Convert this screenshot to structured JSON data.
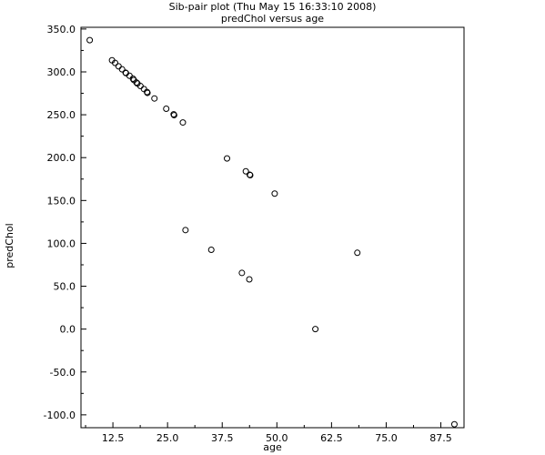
{
  "chart_data": {
    "type": "scatter",
    "title": "Sib-pair plot (Thu May 15 16:33:10 2008)",
    "subtitle": "predChol versus age",
    "xlabel": "age",
    "ylabel": "predChol",
    "xlim": [
      5.2,
      92.8
    ],
    "ylim": [
      -115.0,
      352.0
    ],
    "x_ticks": [
      "12.5",
      "25.0",
      "37.5",
      "50.0",
      "62.5",
      "75.0",
      "87.5"
    ],
    "y_ticks": [
      "350.0",
      "300.0",
      "250.0",
      "200.0",
      "150.0",
      "100.0",
      "50.0",
      "0.0",
      "-50.0",
      "-100.0"
    ],
    "grid": false,
    "marker": "open-circle",
    "points": [
      {
        "x": 7.2,
        "y": 337.0
      },
      {
        "x": 12.3,
        "y": 313.5
      },
      {
        "x": 13.0,
        "y": 310.5
      },
      {
        "x": 13.8,
        "y": 306.5
      },
      {
        "x": 14.6,
        "y": 303.0
      },
      {
        "x": 15.4,
        "y": 299.0
      },
      {
        "x": 15.5,
        "y": 298.5
      },
      {
        "x": 16.3,
        "y": 295.5
      },
      {
        "x": 17.1,
        "y": 292.0
      },
      {
        "x": 17.3,
        "y": 290.5
      },
      {
        "x": 17.9,
        "y": 287.5
      },
      {
        "x": 18.1,
        "y": 286.5
      },
      {
        "x": 18.8,
        "y": 283.5
      },
      {
        "x": 19.6,
        "y": 280.0
      },
      {
        "x": 20.3,
        "y": 276.5
      },
      {
        "x": 20.4,
        "y": 275.5
      },
      {
        "x": 22.0,
        "y": 269.0
      },
      {
        "x": 24.7,
        "y": 257.0
      },
      {
        "x": 26.4,
        "y": 250.5
      },
      {
        "x": 26.5,
        "y": 249.5
      },
      {
        "x": 28.5,
        "y": 241.0
      },
      {
        "x": 29.1,
        "y": 115.5
      },
      {
        "x": 35.0,
        "y": 92.5
      },
      {
        "x": 38.6,
        "y": 199.0
      },
      {
        "x": 42.0,
        "y": 65.5
      },
      {
        "x": 42.9,
        "y": 184.0
      },
      {
        "x": 43.7,
        "y": 58.0
      },
      {
        "x": 43.8,
        "y": 180.0
      },
      {
        "x": 43.9,
        "y": 179.5
      },
      {
        "x": 49.5,
        "y": 158.0
      },
      {
        "x": 58.8,
        "y": 0.0
      },
      {
        "x": 68.4,
        "y": 89.0
      },
      {
        "x": 90.6,
        "y": -111.0
      }
    ]
  }
}
